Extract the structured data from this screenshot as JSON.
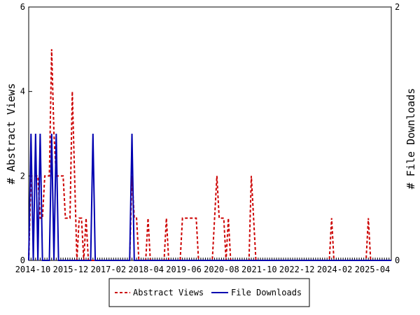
{
  "chart_data": {
    "type": "line",
    "x_labels": [
      "2014-10",
      "2015-12",
      "2017-02",
      "2018-04",
      "2019-06",
      "2020-08",
      "2021-10",
      "2022-12",
      "2024-02",
      "2025-04"
    ],
    "ylabel": "# Abstract Views",
    "y2label": "# File Downloads",
    "ylim": [
      0,
      6
    ],
    "y2lim": [
      0,
      2
    ],
    "yticks": [
      "0",
      "2",
      "4",
      "6"
    ],
    "y2ticks": [
      "0",
      "2"
    ],
    "legend_position": "bottom-center",
    "series": [
      {
        "name": "Abstract Views",
        "axis": "left",
        "color": "#cc0000",
        "style": "dashed",
        "values": [
          0,
          2,
          2,
          2,
          2,
          1,
          1,
          2,
          2,
          2,
          5,
          3,
          2,
          2,
          2,
          2,
          1,
          1,
          1,
          4,
          2,
          0,
          1,
          1,
          0,
          1,
          0,
          0,
          0,
          0,
          0,
          0,
          0,
          0,
          0,
          0,
          0,
          0,
          0,
          0,
          0,
          0,
          0,
          0,
          0,
          2,
          1,
          1,
          0,
          0,
          0,
          0,
          1,
          0,
          0,
          0,
          0,
          0,
          0,
          0,
          1,
          0,
          0,
          0,
          0,
          0,
          0,
          1,
          1,
          1,
          1,
          1,
          1,
          1,
          0,
          0,
          0,
          0,
          0,
          0,
          0,
          1,
          2,
          1,
          1,
          1,
          0,
          1,
          0,
          0,
          0,
          0,
          0,
          0,
          0,
          0,
          0,
          2,
          1,
          0,
          0,
          0,
          0,
          0,
          0,
          0,
          0,
          0,
          0,
          0,
          0,
          0,
          0,
          0,
          0,
          0,
          0,
          0,
          0,
          0,
          0,
          0,
          0,
          0,
          0,
          0,
          0,
          0,
          0,
          0,
          0,
          0,
          1,
          0,
          0,
          0,
          0,
          0,
          0,
          0,
          0,
          0,
          0,
          0,
          0,
          0,
          0,
          0,
          1,
          0,
          0,
          0,
          0,
          0,
          0,
          0,
          0,
          0,
          0
        ]
      },
      {
        "name": "File Downloads",
        "axis": "right",
        "color": "#0000b0",
        "style": "solid",
        "values": [
          0,
          1,
          0,
          1,
          0,
          1,
          0,
          0,
          0,
          0,
          1,
          0,
          1,
          0,
          0,
          0,
          0,
          0,
          0,
          0,
          0,
          0,
          0,
          0,
          0,
          0,
          0,
          0,
          1,
          0,
          0,
          0,
          0,
          0,
          0,
          0,
          0,
          0,
          0,
          0,
          0,
          0,
          0,
          0,
          0,
          1,
          0,
          0,
          0,
          0,
          0,
          0,
          0,
          0,
          0,
          0,
          0,
          0,
          0,
          0,
          0,
          0,
          0,
          0,
          0,
          0,
          0,
          0,
          0,
          0,
          0,
          0,
          0,
          0,
          0,
          0,
          0,
          0,
          0,
          0,
          0,
          0,
          0,
          0,
          0,
          0,
          0,
          0,
          0,
          0,
          0,
          0,
          0,
          0,
          0,
          0,
          0,
          0,
          0,
          0,
          0,
          0,
          0,
          0,
          0,
          0,
          0,
          0,
          0,
          0,
          0,
          0,
          0,
          0,
          0,
          0,
          0,
          0,
          0,
          0,
          0,
          0,
          0,
          0,
          0,
          0,
          0,
          0,
          0,
          0,
          0,
          0,
          0,
          0,
          0,
          0,
          0,
          0,
          0,
          0,
          0,
          0,
          0,
          0,
          0,
          0,
          0,
          0,
          0,
          0,
          0,
          0,
          0,
          0,
          0,
          0,
          0,
          0,
          0
        ]
      }
    ]
  }
}
